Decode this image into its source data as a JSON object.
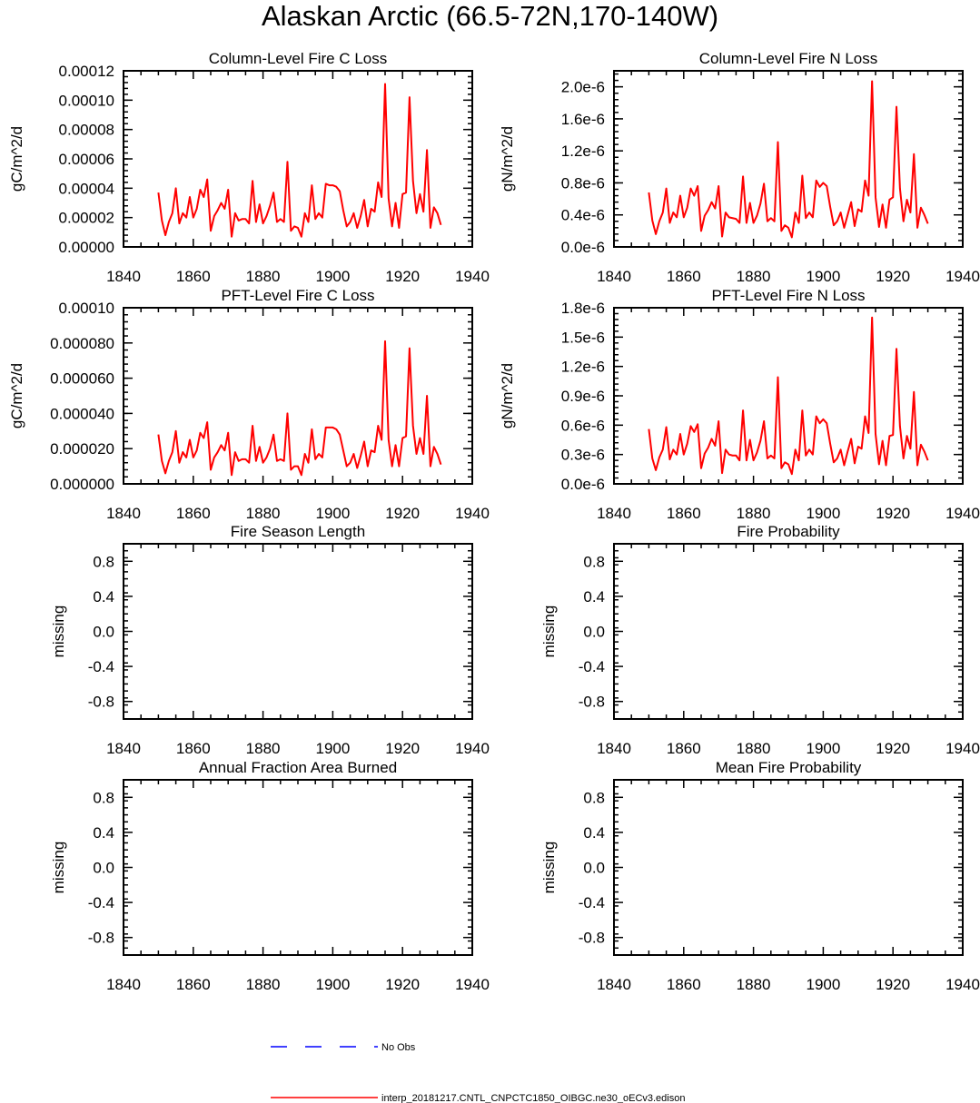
{
  "figure_title": "Alaskan Arctic (66.5-72N,170-140W)",
  "colors": {
    "model": "#ff0000",
    "obs": "#0000ff",
    "axis": "#000000"
  },
  "legend": [
    {
      "label": "No Obs",
      "style": "dashed",
      "color": "#0000ff"
    },
    {
      "label": "interp_20181217.CNTL_CNPCTC1850_OIBGC.ne30_oECv3.edison",
      "style": "solid",
      "color": "#ff0000"
    }
  ],
  "chart_data": [
    {
      "type": "line",
      "title": "Column-Level Fire C Loss",
      "ylabel": "gC/m^2/d",
      "xlim": [
        1840,
        1940
      ],
      "ylim": [
        0,
        0.00012
      ],
      "xticks": [
        "1840",
        "1860",
        "1880",
        "1900",
        "1920",
        "1940"
      ],
      "yticks": [
        {
          "value": 0,
          "label": "0.00000"
        },
        {
          "value": 2e-05,
          "label": "0.00002"
        },
        {
          "value": 4e-05,
          "label": "0.00004"
        },
        {
          "value": 6e-05,
          "label": "0.00006"
        },
        {
          "value": 8e-05,
          "label": "0.00008"
        },
        {
          "value": 0.0001,
          "label": "0.00010"
        },
        {
          "value": 0.00012,
          "label": "0.00012"
        }
      ],
      "x_start": 1850,
      "series": [
        {
          "name": "interp_20181217.CNTL_CNPCTC1850_OIBGC.ne30_oECv3.edison",
          "values": [
            3.7e-05,
            1.8e-05,
            8e-06,
            1.7e-05,
            2.3e-05,
            4e-05,
            1.6e-05,
            2.3e-05,
            2e-05,
            3.4e-05,
            2e-05,
            2.6e-05,
            3.9e-05,
            3.4e-05,
            4.6e-05,
            1.1e-05,
            2.1e-05,
            2.5e-05,
            3e-05,
            2.6e-05,
            3.9e-05,
            7e-06,
            2.3e-05,
            1.8e-05,
            1.9e-05,
            1.9e-05,
            1.6e-05,
            4.5e-05,
            1.7e-05,
            2.9e-05,
            1.6e-05,
            2.1e-05,
            2.8e-05,
            3.7e-05,
            1.7e-05,
            1.9e-05,
            1.7e-05,
            5.8e-05,
            1.1e-05,
            1.4e-05,
            1.3e-05,
            7e-06,
            2.3e-05,
            1.7e-05,
            4.2e-05,
            1.9e-05,
            2.3e-05,
            2e-05,
            4.3e-05,
            4.2e-05,
            4.2e-05,
            4.1e-05,
            3.8e-05,
            2.5e-05,
            1.4e-05,
            1.7e-05,
            2.3e-05,
            1.3e-05,
            2.1e-05,
            3.2e-05,
            1.4e-05,
            2.6e-05,
            2.4e-05,
            4.4e-05,
            3.4e-05,
            0.000111,
            3.3e-05,
            1.4e-05,
            3e-05,
            1.3e-05,
            3.6e-05,
            3.7e-05,
            0.000102,
            4.5e-05,
            2.3e-05,
            3.6e-05,
            2.4e-05,
            6.6e-05,
            1.3e-05,
            2.7e-05,
            2.3e-05,
            1.5e-05
          ]
        }
      ]
    },
    {
      "type": "line",
      "title": "Column-Level Fire N Loss",
      "ylabel": "gN/m^2/d",
      "xlim": [
        1840,
        1940
      ],
      "ylim": [
        0,
        2.2e-06
      ],
      "xticks": [
        "1840",
        "1860",
        "1880",
        "1900",
        "1920",
        "1940"
      ],
      "yticks": [
        {
          "value": 0,
          "label": "0.0e-6"
        },
        {
          "value": 4e-07,
          "label": "0.4e-6"
        },
        {
          "value": 8e-07,
          "label": "0.8e-6"
        },
        {
          "value": 1.2e-06,
          "label": "1.2e-6"
        },
        {
          "value": 1.6e-06,
          "label": "1.6e-6"
        },
        {
          "value": 2e-06,
          "label": "2.0e-6"
        }
      ],
      "x_start": 1850,
      "series": [
        {
          "name": "interp_20181217.CNTL_CNPCTC1850_OIBGC.ne30_oECv3.edison",
          "values": [
            6.8e-07,
            3.3e-07,
            1.6e-07,
            3.2e-07,
            4.3e-07,
            7.3e-07,
            3e-07,
            4.3e-07,
            3.7e-07,
            6.4e-07,
            3.7e-07,
            4.9e-07,
            7.3e-07,
            6.4e-07,
            7.6e-07,
            2e-07,
            3.9e-07,
            4.6e-07,
            5.6e-07,
            4.8e-07,
            7.6e-07,
            1.3e-07,
            4.3e-07,
            3.7e-07,
            3.6e-07,
            3.5e-07,
            3e-07,
            8.8e-07,
            3e-07,
            5.5e-07,
            3e-07,
            3.9e-07,
            5.4e-07,
            7.9e-07,
            3.2e-07,
            3.6e-07,
            3.2e-07,
            1.31e-06,
            2e-07,
            2.7e-07,
            2.4e-07,
            1.2e-07,
            4.3e-07,
            3e-07,
            8.9e-07,
            3.6e-07,
            4.3e-07,
            3.7e-07,
            8.3e-07,
            7.5e-07,
            8e-07,
            7.6e-07,
            5e-07,
            2.7e-07,
            3.2e-07,
            4.3e-07,
            2.4e-07,
            4e-07,
            5.6e-07,
            2.6e-07,
            4.7e-07,
            4.4e-07,
            8.3e-07,
            6.4e-07,
            2.07e-06,
            6.2e-07,
            2.5e-07,
            5.3e-07,
            2.4e-07,
            5.9e-07,
            6.2e-07,
            1.75e-06,
            7.3e-07,
            3.2e-07,
            5.9e-07,
            4.3e-07,
            1.16e-06,
            2.4e-07,
            4.9e-07,
            4e-07,
            2.9e-07
          ]
        }
      ]
    },
    {
      "type": "line",
      "title": "PFT-Level Fire C Loss",
      "ylabel": "gC/m^2/d",
      "xlim": [
        1840,
        1940
      ],
      "ylim": [
        0,
        0.0001
      ],
      "xticks": [
        "1840",
        "1860",
        "1880",
        "1900",
        "1920",
        "1940"
      ],
      "yticks": [
        {
          "value": 0,
          "label": "0.000000"
        },
        {
          "value": 2e-05,
          "label": "0.000020"
        },
        {
          "value": 4e-05,
          "label": "0.000040"
        },
        {
          "value": 6e-05,
          "label": "0.000060"
        },
        {
          "value": 8e-05,
          "label": "0.000080"
        },
        {
          "value": 0.0001,
          "label": "0.00010"
        }
      ],
      "x_start": 1850,
      "series": [
        {
          "name": "interp_20181217.CNTL_CNPCTC1850_OIBGC.ne30_oECv3.edison",
          "values": [
            2.8e-05,
            1.3e-05,
            6e-06,
            1.3e-05,
            1.8e-05,
            3e-05,
            1.2e-05,
            1.8e-05,
            1.5e-05,
            2.5e-05,
            1.5e-05,
            1.9e-05,
            2.9e-05,
            2.6e-05,
            3.5e-05,
            8e-06,
            1.5e-05,
            1.8e-05,
            2.2e-05,
            1.9e-05,
            2.9e-05,
            5e-06,
            1.8e-05,
            1.3e-05,
            1.4e-05,
            1.4e-05,
            1.2e-05,
            3.3e-05,
            1.3e-05,
            2.1e-05,
            1.2e-05,
            1.5e-05,
            2e-05,
            2.8e-05,
            1.3e-05,
            1.4e-05,
            1.3e-05,
            4e-05,
            8e-06,
            1e-05,
            1e-05,
            5e-06,
            1.7e-05,
            1.2e-05,
            3.1e-05,
            1.4e-05,
            1.7e-05,
            1.5e-05,
            3.2e-05,
            3.2e-05,
            3.2e-05,
            3.1e-05,
            2.8e-05,
            1.9e-05,
            1e-05,
            1.2e-05,
            1.7e-05,
            9e-06,
            1.6e-05,
            2.4e-05,
            1e-05,
            1.9e-05,
            1.8e-05,
            3.3e-05,
            2.5e-05,
            8.1e-05,
            2.5e-05,
            1e-05,
            2.2e-05,
            1e-05,
            2.6e-05,
            2.7e-05,
            7.7e-05,
            3.3e-05,
            1.7e-05,
            2.6e-05,
            1.7e-05,
            5e-05,
            1e-05,
            2.1e-05,
            1.7e-05,
            1.1e-05
          ]
        }
      ]
    },
    {
      "type": "line",
      "title": "PFT-Level Fire N Loss",
      "ylabel": "gN/m^2/d",
      "xlim": [
        1840,
        1940
      ],
      "ylim": [
        0,
        1.8e-06
      ],
      "xticks": [
        "1840",
        "1860",
        "1880",
        "1900",
        "1920",
        "1940"
      ],
      "yticks": [
        {
          "value": 0,
          "label": "0.0e-6"
        },
        {
          "value": 3e-07,
          "label": "0.3e-6"
        },
        {
          "value": 6e-07,
          "label": "0.6e-6"
        },
        {
          "value": 9e-07,
          "label": "0.9e-6"
        },
        {
          "value": 1.2e-06,
          "label": "1.2e-6"
        },
        {
          "value": 1.5e-06,
          "label": "1.5e-6"
        },
        {
          "value": 1.8e-06,
          "label": "1.8e-6"
        }
      ],
      "x_start": 1850,
      "series": [
        {
          "name": "interp_20181217.CNTL_CNPCTC1850_OIBGC.ne30_oECv3.edison",
          "values": [
            5.6e-07,
            2.6e-07,
            1.4e-07,
            2.7e-07,
            3.5e-07,
            5.8e-07,
            2.5e-07,
            3.5e-07,
            3e-07,
            5.1e-07,
            3e-07,
            4.1e-07,
            5.9e-07,
            5.3e-07,
            6.1e-07,
            1.6e-07,
            3.1e-07,
            3.7e-07,
            4.6e-07,
            3.9e-07,
            6.4e-07,
            1.1e-07,
            3.5e-07,
            3e-07,
            2.9e-07,
            2.9e-07,
            2.4e-07,
            7.5e-07,
            2.4e-07,
            4.5e-07,
            2.4e-07,
            3.2e-07,
            4.4e-07,
            6.4e-07,
            2.6e-07,
            2.9e-07,
            2.6e-07,
            1.09e-06,
            1.6e-07,
            2.2e-07,
            2e-07,
            1e-07,
            3.5e-07,
            2.4e-07,
            7.5e-07,
            2.9e-07,
            3.5e-07,
            3e-07,
            6.9e-07,
            6.2e-07,
            6.6e-07,
            6.2e-07,
            4.1e-07,
            2.2e-07,
            2.6e-07,
            3.5e-07,
            1.9e-07,
            3.3e-07,
            4.6e-07,
            2.1e-07,
            3.8e-07,
            3.6e-07,
            6.9e-07,
            5.2e-07,
            1.7e-06,
            5.1e-07,
            2e-07,
            4.4e-07,
            1.9e-07,
            4.9e-07,
            5e-07,
            1.38e-06,
            5.9e-07,
            2.6e-07,
            4.9e-07,
            3.6e-07,
            9.4e-07,
            1.9e-07,
            4e-07,
            3.3e-07,
            2.4e-07
          ]
        }
      ]
    },
    {
      "type": "line",
      "title": "Fire Season Length",
      "ylabel": "missing",
      "xlim": [
        1840,
        1940
      ],
      "ylim": [
        -1,
        1
      ],
      "xticks": [
        "1840",
        "1860",
        "1880",
        "1900",
        "1920",
        "1940"
      ],
      "yticks": [
        {
          "value": -0.8,
          "label": "-0.8"
        },
        {
          "value": -0.4,
          "label": "-0.4"
        },
        {
          "value": 0,
          "label": "0.0"
        },
        {
          "value": 0.4,
          "label": "0.4"
        },
        {
          "value": 0.8,
          "label": "0.8"
        }
      ],
      "x_start": 1850,
      "series": []
    },
    {
      "type": "line",
      "title": "Fire Probability",
      "ylabel": "missing",
      "xlim": [
        1840,
        1940
      ],
      "ylim": [
        -1,
        1
      ],
      "xticks": [
        "1840",
        "1860",
        "1880",
        "1900",
        "1920",
        "1940"
      ],
      "yticks": [
        {
          "value": -0.8,
          "label": "-0.8"
        },
        {
          "value": -0.4,
          "label": "-0.4"
        },
        {
          "value": 0,
          "label": "0.0"
        },
        {
          "value": 0.4,
          "label": "0.4"
        },
        {
          "value": 0.8,
          "label": "0.8"
        }
      ],
      "x_start": 1850,
      "series": []
    },
    {
      "type": "line",
      "title": "Annual Fraction Area Burned",
      "ylabel": "missing",
      "xlim": [
        1840,
        1940
      ],
      "ylim": [
        -1,
        1
      ],
      "xticks": [
        "1840",
        "1860",
        "1880",
        "1900",
        "1920",
        "1940"
      ],
      "yticks": [
        {
          "value": -0.8,
          "label": "-0.8"
        },
        {
          "value": -0.4,
          "label": "-0.4"
        },
        {
          "value": 0,
          "label": "0.0"
        },
        {
          "value": 0.4,
          "label": "0.4"
        },
        {
          "value": 0.8,
          "label": "0.8"
        }
      ],
      "x_start": 1850,
      "series": []
    },
    {
      "type": "line",
      "title": "Mean Fire Probability",
      "ylabel": "missing",
      "xlim": [
        1840,
        1940
      ],
      "ylim": [
        -1,
        1
      ],
      "xticks": [
        "1840",
        "1860",
        "1880",
        "1900",
        "1920",
        "1940"
      ],
      "yticks": [
        {
          "value": -0.8,
          "label": "-0.8"
        },
        {
          "value": -0.4,
          "label": "-0.4"
        },
        {
          "value": 0,
          "label": "0.0"
        },
        {
          "value": 0.4,
          "label": "0.4"
        },
        {
          "value": 0.8,
          "label": "0.8"
        }
      ],
      "x_start": 1850,
      "series": []
    }
  ]
}
